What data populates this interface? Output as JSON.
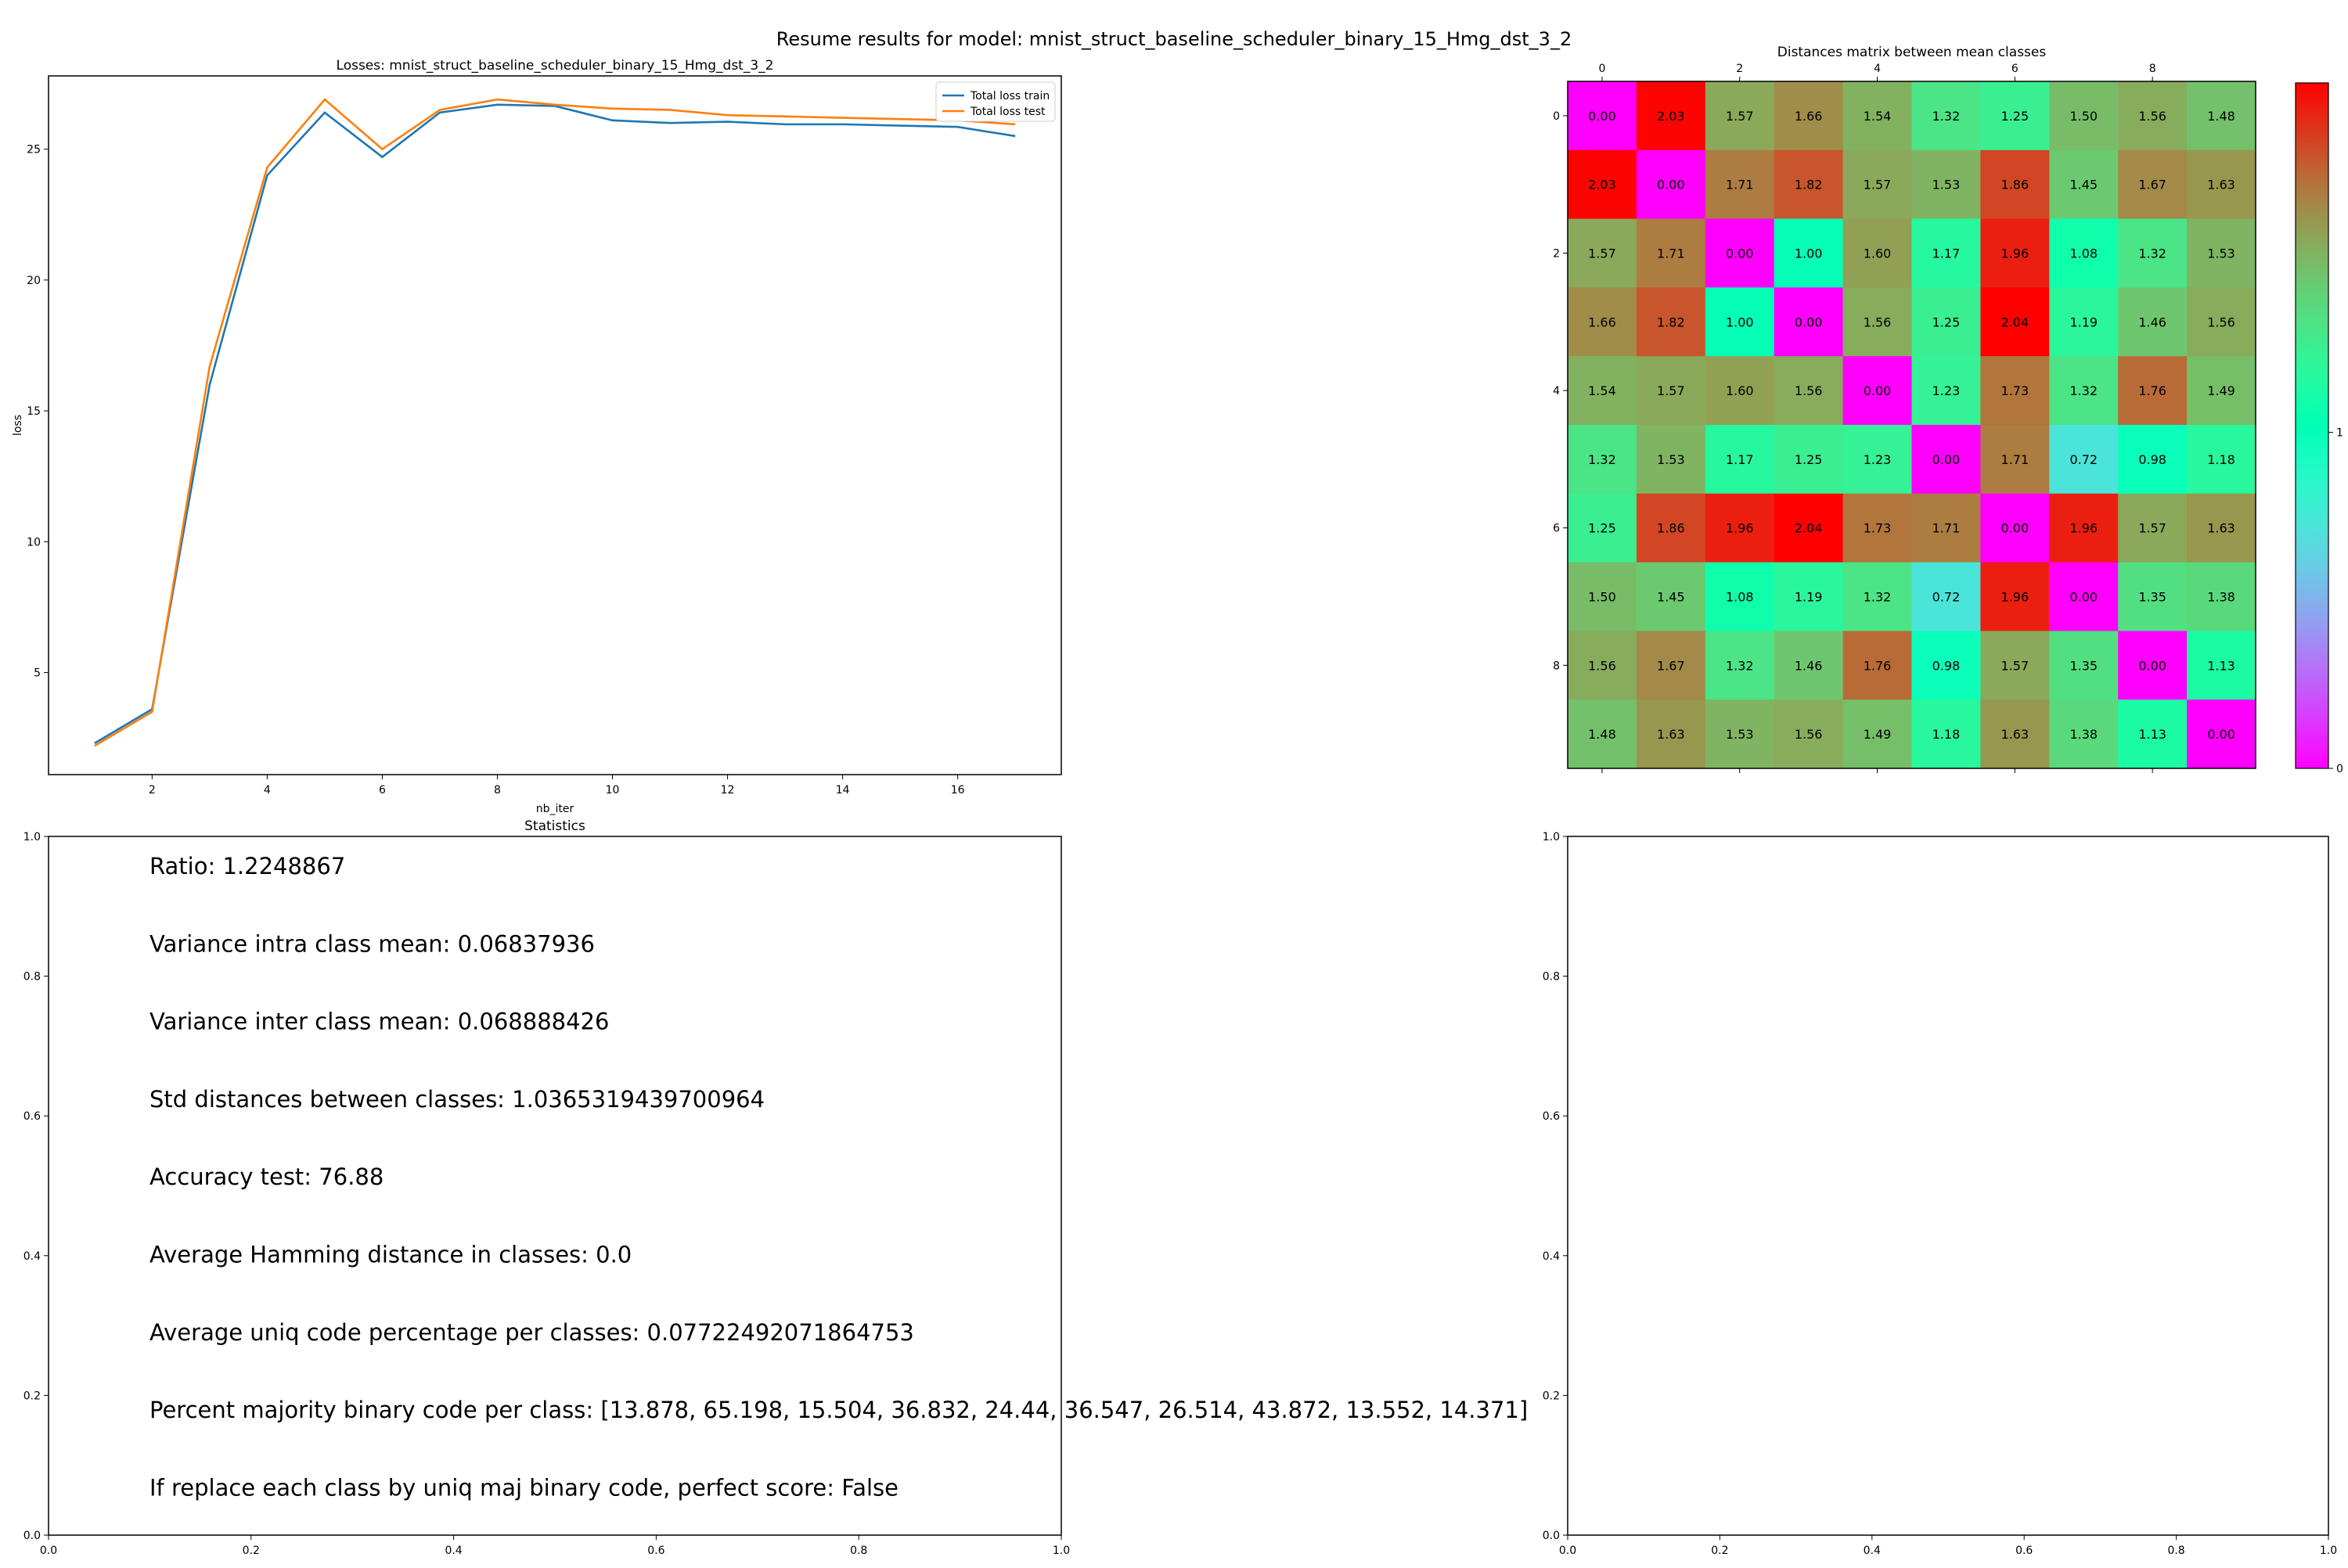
{
  "figure": {
    "title": "Resume results for model: mnist_struct_baseline_scheduler_binary_15_Hmg_dst_3_2"
  },
  "chart_data": [
    {
      "id": "losses",
      "type": "line",
      "title": "Losses: mnist_struct_baseline_scheduler_binary_15_Hmg_dst_3_2",
      "xlabel": "nb_iter",
      "ylabel": "loss",
      "xlim": [
        0.2,
        17.8
      ],
      "ylim": [
        1.1,
        27.8
      ],
      "xticks": [
        2,
        4,
        6,
        8,
        10,
        12,
        14,
        16
      ],
      "yticks": [
        5,
        10,
        15,
        20,
        25
      ],
      "x": [
        1,
        2,
        3,
        4,
        5,
        6,
        7,
        8,
        9,
        10,
        11,
        12,
        13,
        14,
        15,
        16,
        17
      ],
      "series": [
        {
          "name": "Total loss train",
          "color": "#1f77b4",
          "values": [
            2.3,
            3.6,
            16.0,
            24.0,
            26.4,
            24.7,
            26.4,
            26.7,
            26.65,
            26.1,
            26.0,
            26.05,
            25.95,
            25.95,
            25.9,
            25.85,
            25.5
          ]
        },
        {
          "name": "Total loss test",
          "color": "#ff7f0e",
          "values": [
            2.2,
            3.5,
            16.7,
            24.3,
            26.9,
            25.0,
            26.5,
            26.9,
            26.7,
            26.55,
            26.5,
            26.3,
            26.25,
            26.2,
            26.15,
            26.1,
            25.95
          ]
        }
      ],
      "legend_position": "top-right",
      "grid": false
    },
    {
      "id": "distances",
      "type": "heatmap",
      "title": "Distances matrix between mean classes",
      "colormap": "rainbow",
      "vmin": 0,
      "vmax": 2.04,
      "xticks": [
        0,
        2,
        4,
        6,
        8
      ],
      "yticks": [
        0,
        2,
        4,
        6,
        8
      ],
      "colorbar_ticks": [
        0,
        1
      ],
      "matrix": [
        [
          0.0,
          2.03,
          1.57,
          1.66,
          1.54,
          1.32,
          1.25,
          1.5,
          1.56,
          1.48
        ],
        [
          2.03,
          0.0,
          1.71,
          1.82,
          1.57,
          1.53,
          1.86,
          1.45,
          1.67,
          1.63
        ],
        [
          1.57,
          1.71,
          0.0,
          1.0,
          1.6,
          1.17,
          1.96,
          1.08,
          1.32,
          1.53
        ],
        [
          1.66,
          1.82,
          1.0,
          0.0,
          1.56,
          1.25,
          2.04,
          1.19,
          1.46,
          1.56
        ],
        [
          1.54,
          1.57,
          1.6,
          1.56,
          0.0,
          1.23,
          1.73,
          1.32,
          1.76,
          1.49
        ],
        [
          1.32,
          1.53,
          1.17,
          1.25,
          1.23,
          0.0,
          1.71,
          0.72,
          0.98,
          1.18
        ],
        [
          1.25,
          1.86,
          1.96,
          2.04,
          1.73,
          1.71,
          0.0,
          1.96,
          1.57,
          1.63
        ],
        [
          1.5,
          1.45,
          1.08,
          1.19,
          1.32,
          0.72,
          1.96,
          0.0,
          1.35,
          1.38
        ],
        [
          1.56,
          1.67,
          1.32,
          1.46,
          1.76,
          0.98,
          1.57,
          1.35,
          0.0,
          1.13
        ],
        [
          1.48,
          1.63,
          1.53,
          1.56,
          1.49,
          1.18,
          1.63,
          1.38,
          1.13,
          0.0
        ]
      ]
    },
    {
      "id": "statistics",
      "type": "table",
      "title": "Statistics",
      "xlim": [
        0,
        1
      ],
      "ylim": [
        0,
        1
      ],
      "xticks": [
        "0.0",
        "0.2",
        "0.4",
        "0.6",
        "0.8",
        "1.0"
      ],
      "yticks": [
        "0.0",
        "0.2",
        "0.4",
        "0.6",
        "0.8",
        "1.0"
      ],
      "lines": [
        "Ratio: 1.2248867",
        "Variance intra class mean: 0.06837936",
        "Variance inter class mean: 0.068888426",
        "Std distances between classes: 1.0365319439700964",
        "Accuracy test: 76.88",
        "Average Hamming distance in classes: 0.0",
        "Average uniq code percentage per classes: 0.07722492071864753",
        "Percent majority binary code per class: [13.878, 65.198, 15.504, 36.832, 24.44, 36.547, 26.514, 43.872, 13.552, 14.371]",
        "If replace each class by uniq maj binary code, perfect score: False"
      ]
    },
    {
      "id": "empty",
      "type": "scatter",
      "title": "",
      "xlim": [
        0,
        1
      ],
      "ylim": [
        0,
        1
      ],
      "xticks": [
        "0.0",
        "0.2",
        "0.4",
        "0.6",
        "0.8",
        "1.0"
      ],
      "yticks": [
        "0.0",
        "0.2",
        "0.4",
        "0.6",
        "0.8",
        "1.0"
      ],
      "points": []
    }
  ]
}
